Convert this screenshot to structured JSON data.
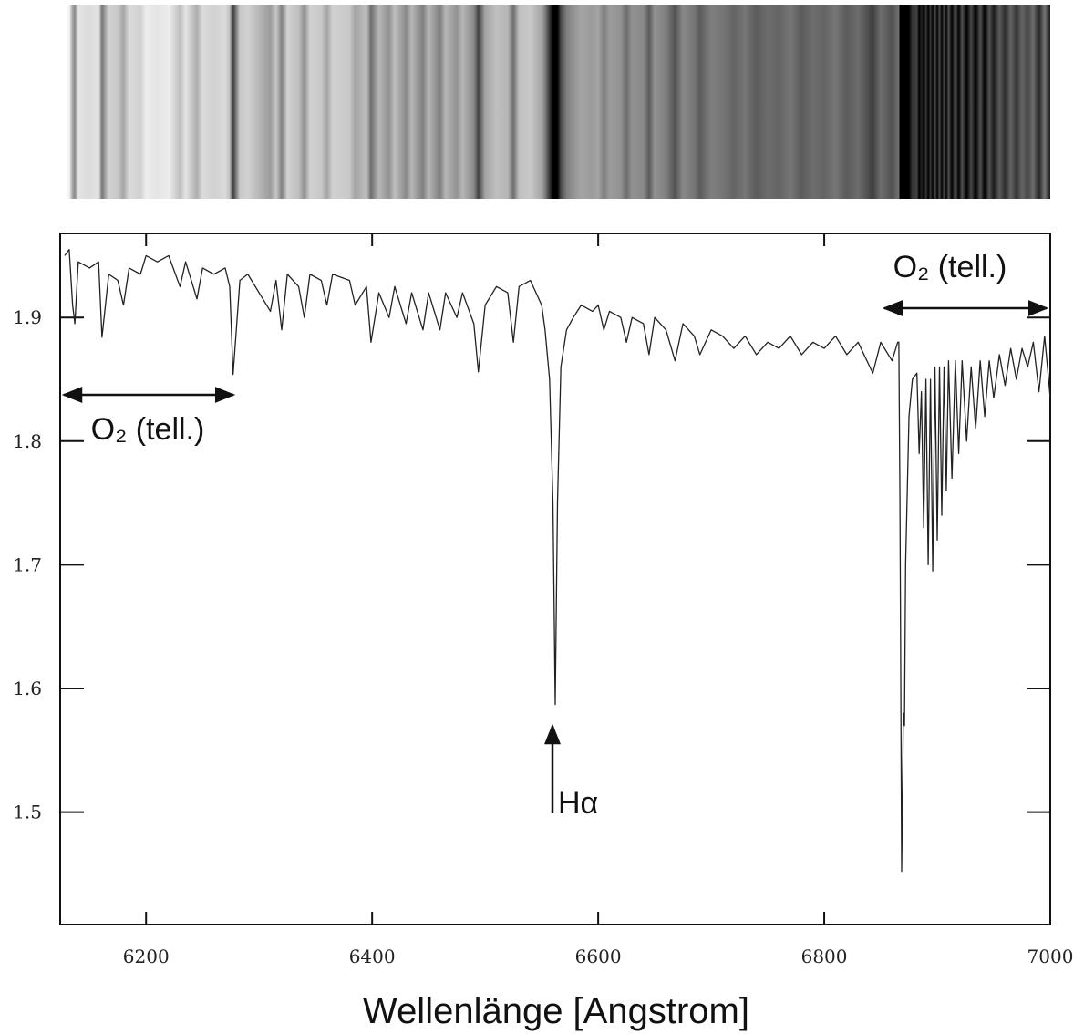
{
  "chart_data": {
    "type": "line",
    "xlabel": "Wellenlänge [Angstrom]",
    "annotations": [
      {
        "text": "O₂ (tell.)"
      },
      {
        "text": "O₂ (tell.)"
      },
      {
        "text": "Hα"
      }
    ],
    "xlim": [
      6124,
      7000
    ],
    "ylim": [
      1.409,
      1.968
    ],
    "xticks": [
      6200,
      6400,
      6600,
      6800,
      7000
    ],
    "yticks": [
      1.5,
      1.6,
      1.7,
      1.8,
      1.9
    ],
    "series": [
      {
        "color": "#222222",
        "x": [
          6128,
          6132,
          6135,
          6137,
          6140,
          6150,
          6158,
          6161,
          6167,
          6175,
          6180,
          6185,
          6195,
          6200,
          6210,
          6220,
          6230,
          6235,
          6245,
          6250,
          6260,
          6270,
          6274,
          6277,
          6283,
          6290,
          6300,
          6310,
          6315,
          6320,
          6325,
          6335,
          6340,
          6345,
          6355,
          6360,
          6365,
          6380,
          6385,
          6395,
          6399,
          6406,
          6415,
          6420,
          6430,
          6435,
          6445,
          6450,
          6460,
          6465,
          6475,
          6480,
          6490,
          6494,
          6500,
          6510,
          6520,
          6525,
          6530,
          6540,
          6550,
          6553,
          6557,
          6560,
          6562,
          6564,
          6567,
          6572,
          6578,
          6585,
          6595,
          6600,
          6605,
          6610,
          6620,
          6625,
          6630,
          6640,
          6645,
          6650,
          6660,
          6668,
          6675,
          6685,
          6690,
          6700,
          6710,
          6720,
          6730,
          6740,
          6750,
          6760,
          6770,
          6780,
          6790,
          6800,
          6810,
          6820,
          6830,
          6843,
          6850,
          6860,
          6865,
          6866,
          6867,
          6868.5,
          6870,
          6871,
          6872,
          6875,
          6878,
          6882,
          6884,
          6886,
          6888,
          6890,
          6892,
          6894,
          6896,
          6898,
          6900,
          6902,
          6904,
          6906,
          6908,
          6910,
          6913,
          6916,
          6919,
          6922,
          6926,
          6930,
          6934,
          6938,
          6942,
          6946,
          6950,
          6955,
          6960,
          6965,
          6970,
          6975,
          6980,
          6985,
          6990,
          6995,
          7000
        ],
        "values": [
          1.95,
          1.955,
          1.91,
          1.895,
          1.945,
          1.94,
          1.945,
          1.884,
          1.935,
          1.93,
          1.91,
          1.94,
          1.935,
          1.95,
          1.945,
          1.95,
          1.925,
          1.945,
          1.915,
          1.94,
          1.935,
          1.94,
          1.925,
          1.854,
          1.93,
          1.935,
          1.92,
          1.905,
          1.93,
          1.89,
          1.935,
          1.925,
          1.9,
          1.935,
          1.93,
          1.91,
          1.935,
          1.93,
          1.91,
          1.925,
          1.88,
          1.92,
          1.9,
          1.925,
          1.895,
          1.92,
          1.89,
          1.92,
          1.89,
          1.92,
          1.9,
          1.92,
          1.895,
          1.856,
          1.91,
          1.925,
          1.92,
          1.88,
          1.925,
          1.93,
          1.91,
          1.89,
          1.85,
          1.75,
          1.587,
          1.75,
          1.86,
          1.89,
          1.9,
          1.91,
          1.905,
          1.91,
          1.89,
          1.905,
          1.9,
          1.88,
          1.9,
          1.895,
          1.87,
          1.9,
          1.89,
          1.865,
          1.895,
          1.885,
          1.87,
          1.89,
          1.885,
          1.875,
          1.885,
          1.87,
          1.88,
          1.875,
          1.885,
          1.87,
          1.88,
          1.875,
          1.885,
          1.87,
          1.88,
          1.855,
          1.88,
          1.865,
          1.88,
          1.88,
          1.75,
          1.452,
          1.58,
          1.57,
          1.7,
          1.82,
          1.85,
          1.855,
          1.79,
          1.84,
          1.73,
          1.85,
          1.7,
          1.85,
          1.695,
          1.86,
          1.72,
          1.86,
          1.74,
          1.86,
          1.76,
          1.865,
          1.77,
          1.865,
          1.79,
          1.865,
          1.8,
          1.86,
          1.81,
          1.865,
          1.82,
          1.865,
          1.835,
          1.87,
          1.845,
          1.875,
          1.85,
          1.875,
          1.86,
          1.88,
          1.84,
          1.885,
          1.835
        ]
      }
    ]
  }
}
